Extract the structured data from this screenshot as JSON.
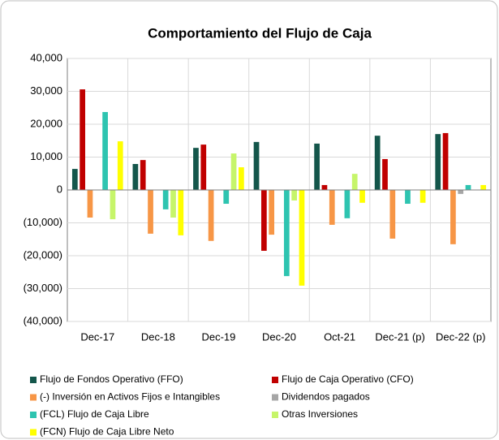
{
  "chart_data": {
    "type": "bar",
    "title": "Comportamiento del Flujo de Caja",
    "categories": [
      "Dec-17",
      "Dec-18",
      "Dec-19",
      "Dec-20",
      "Oct-21",
      "Dec-21 (p)",
      "Dec-22 (p)"
    ],
    "series": [
      {
        "name": "Flujo de Fondos Operativo (FFO)",
        "color": "#14564b",
        "values": [
          6400,
          7900,
          12800,
          14600,
          14100,
          16500,
          17000
        ]
      },
      {
        "name": "Flujo de Caja Operativo (CFO)",
        "color": "#c00000",
        "values": [
          30600,
          9100,
          13800,
          -18500,
          1500,
          9400,
          17300
        ]
      },
      {
        "name": "(-) Inversión en Activos Fijos e Intangibles",
        "color": "#f79646",
        "values": [
          -8400,
          -13300,
          -15500,
          -13600,
          -10600,
          -14800,
          -16500
        ]
      },
      {
        "name": "Dividendos pagados",
        "color": "#a6a6a6",
        "values": [
          0,
          0,
          0,
          0,
          0,
          0,
          -1200
        ]
      },
      {
        "name": "(FCL) Flujo de Caja Libre",
        "color": "#2ec4b0",
        "values": [
          23700,
          -5900,
          -4200,
          -26200,
          -8600,
          -4200,
          1500
        ]
      },
      {
        "name": "Otras Inversiones",
        "color": "#c6f56a",
        "values": [
          -8900,
          -8400,
          11100,
          -3200,
          4900,
          0,
          0
        ]
      },
      {
        "name": "(FCN) Flujo de Caja Libre Neto",
        "color": "#ffff00",
        "values": [
          14800,
          -13800,
          6900,
          -29100,
          -3900,
          -3900,
          1500
        ]
      }
    ],
    "ylim": [
      -40000,
      40000
    ],
    "yticks": [
      {
        "value": -40000,
        "label": "(40,000)"
      },
      {
        "value": -30000,
        "label": "(30,000)"
      },
      {
        "value": -20000,
        "label": "(20,000)"
      },
      {
        "value": -10000,
        "label": "(10,000)"
      },
      0,
      {
        "value": 10000,
        "label": "10,000"
      },
      {
        "value": 20000,
        "label": "20,000"
      },
      {
        "value": 30000,
        "label": "30,000"
      },
      {
        "value": 40000,
        "label": "40,000"
      }
    ],
    "grid": true,
    "legend": "bottom"
  }
}
